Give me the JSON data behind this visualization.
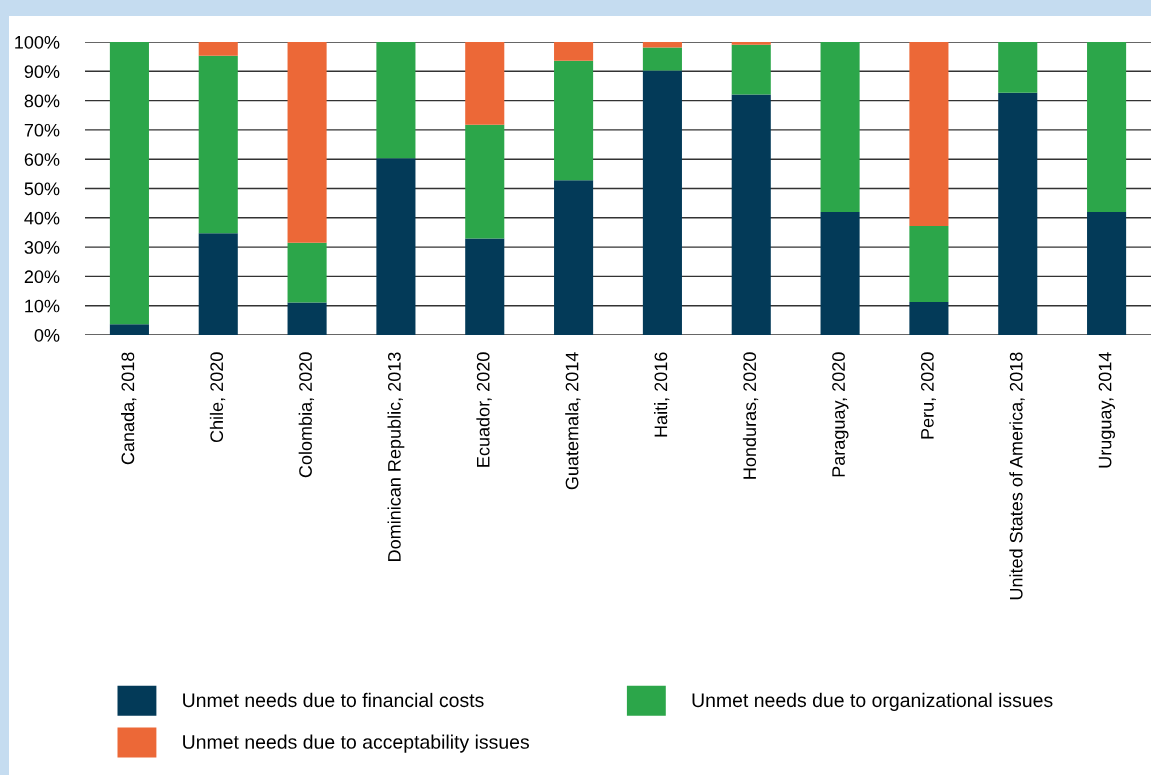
{
  "chart_data": {
    "type": "bar",
    "stacked": true,
    "categories": [
      "Canada, 2018",
      "Chile, 2020",
      "Colombia, 2020",
      "Dominican Republic, 2013",
      "Ecuador, 2020",
      "Guatemala, 2014",
      "Haiti, 2016",
      "Honduras, 2020",
      "Paraguay, 2020",
      "Peru, 2020",
      "United States of America, 2018",
      "Uruguay, 2014"
    ],
    "series": [
      {
        "name": "Unmet needs due to financial costs",
        "color": "#033a58",
        "values": [
          3.7,
          34.7,
          11.1,
          60.3,
          32.9,
          52.8,
          90.3,
          82.1,
          42.0,
          11.3,
          82.7,
          42.0
        ]
      },
      {
        "name": "Unmet needs due to organizational issues",
        "color": "#2ca64a",
        "values": [
          96.3,
          60.6,
          20.4,
          39.7,
          38.9,
          40.8,
          7.8,
          17.0,
          58.0,
          25.9,
          17.3,
          58.0
        ]
      },
      {
        "name": "Unmet needs due to acceptability issues",
        "color": "#ec6837",
        "values": [
          0,
          4.7,
          68.5,
          0,
          28.2,
          6.4,
          1.9,
          0.9,
          0,
          62.8,
          0,
          0
        ]
      }
    ],
    "ylim": [
      0,
      100
    ],
    "yticks": [
      {
        "value": 0,
        "label": "0%"
      },
      {
        "value": 10,
        "label": "10%"
      },
      {
        "value": 20,
        "label": "20%"
      },
      {
        "value": 30,
        "label": "30%"
      },
      {
        "value": 40,
        "label": "40%"
      },
      {
        "value": 50,
        "label": "50%"
      },
      {
        "value": 60,
        "label": "60%"
      },
      {
        "value": 70,
        "label": "70%"
      },
      {
        "value": 80,
        "label": "80%"
      },
      {
        "value": 90,
        "label": "90%"
      },
      {
        "value": 100,
        "label": "100%"
      }
    ],
    "grid": "y",
    "legend": "bottom"
  }
}
